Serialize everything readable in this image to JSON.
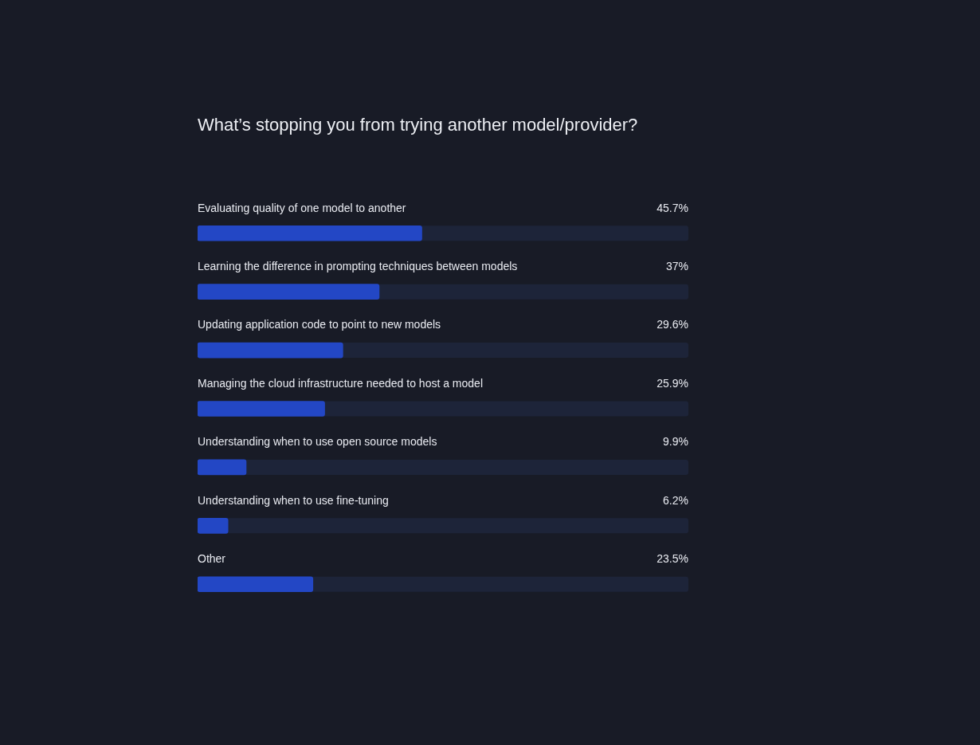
{
  "chart_data": {
    "type": "bar",
    "orientation": "horizontal",
    "title": "What’s stopping you from trying another model/provider?",
    "categories": [
      "Evaluating quality of one model to another",
      "Learning the difference in prompting techniques between models",
      "Updating application code to point to new models",
      "Managing the cloud infrastructure needed to host a model",
      "Understanding when to use open source models",
      "Understanding when to use fine-tuning",
      "Other"
    ],
    "values": [
      45.7,
      37,
      29.6,
      25.9,
      9.9,
      6.2,
      23.5
    ],
    "value_labels": [
      "45.7%",
      "37%",
      "29.6%",
      "25.9%",
      "9.9%",
      "6.2%",
      "23.5%"
    ],
    "color": "#2347c5",
    "xlim": [
      0,
      100
    ],
    "tick_labels": "y"
  }
}
